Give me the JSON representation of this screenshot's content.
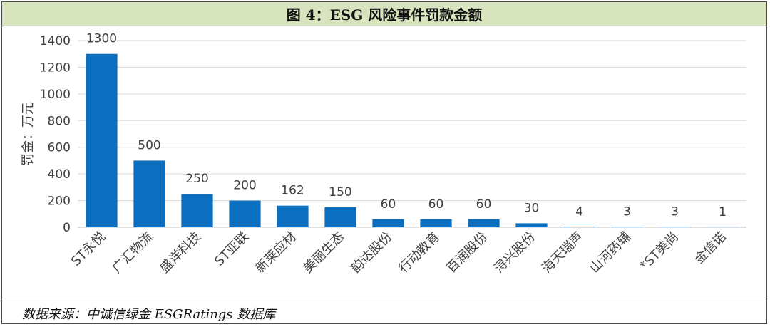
{
  "figure": {
    "title": "图 4：ESG 风险事件罚款金额",
    "source": "数据来源：中诚信绿金 ESGRatings 数据库"
  },
  "chart_data": {
    "type": "bar",
    "title": "图 4：ESG 风险事件罚款金额",
    "xlabel": "",
    "ylabel": "罚金：万元",
    "ylim": [
      0,
      1400
    ],
    "yticks": [
      0,
      200,
      400,
      600,
      800,
      1000,
      1200,
      1400
    ],
    "grid": true,
    "categories": [
      "ST永悦",
      "广汇物流",
      "盛洋科技",
      "ST亚联",
      "新莱应材",
      "美丽生态",
      "韵达股份",
      "行动教育",
      "百润股份",
      "浔兴股份",
      "海天瑞声",
      "山河药辅",
      "*ST美尚",
      "金信诺"
    ],
    "values": [
      1300,
      500,
      250,
      200,
      162,
      150,
      60,
      60,
      60,
      30,
      4,
      3,
      3,
      1
    ],
    "bar_color": "#0b6ebf"
  }
}
